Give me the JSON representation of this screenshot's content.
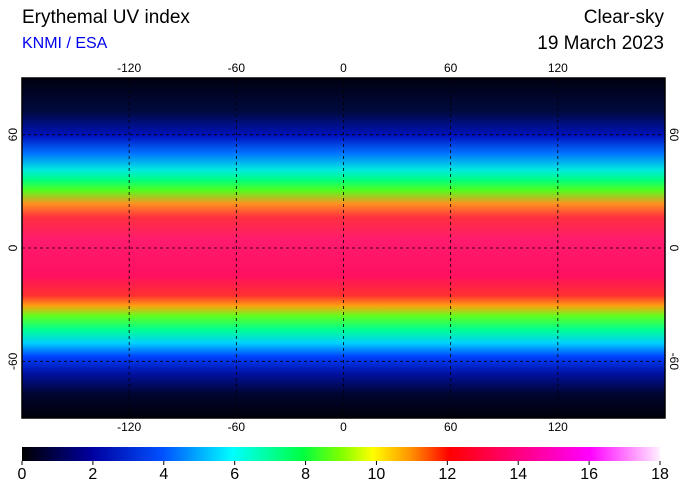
{
  "header": {
    "title": "Erythemal UV index",
    "source": "KNMI / ESA",
    "condition": "Clear-sky",
    "date": "19 March 2023"
  },
  "map": {
    "xlim": [
      -180,
      180
    ],
    "ylim": [
      -90,
      90
    ],
    "xticks": [
      -120,
      -60,
      0,
      60,
      120
    ],
    "yticks": [
      60,
      0,
      -60
    ]
  },
  "colorbar": {
    "lim": [
      0,
      18
    ],
    "ticks": [
      0,
      2,
      4,
      6,
      8,
      10,
      12,
      14,
      16,
      18
    ]
  }
}
